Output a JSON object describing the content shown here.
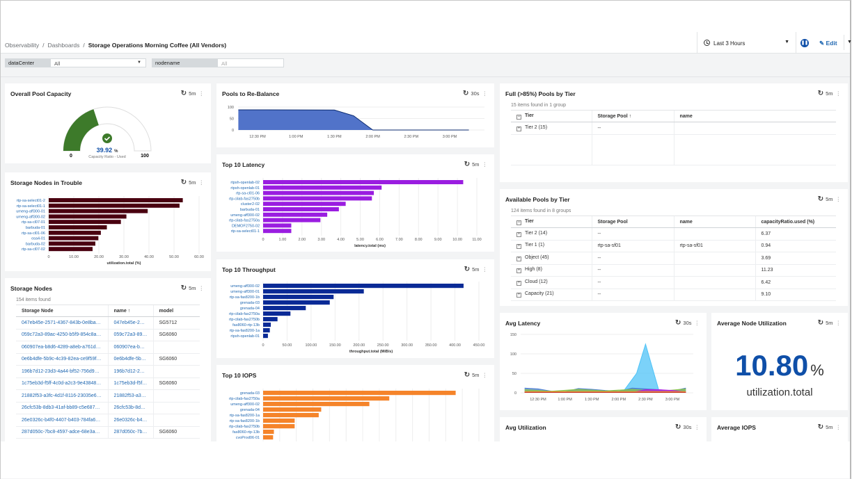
{
  "breadcrumb": {
    "items": [
      "Observability",
      "Dashboards"
    ],
    "current": "Storage Operations Morning Coffee (All Vendors)"
  },
  "header": {
    "time_range": "Last 3 Hours",
    "pause_icon": "pause-icon",
    "edit_label": "Edit"
  },
  "filters": [
    {
      "label": "dataCenter",
      "value": "All"
    },
    {
      "label": "nodename",
      "placeholder": "All"
    }
  ],
  "colors": {
    "accent": "#0f4fa8",
    "link": "#1f67b1",
    "gauge": "#3d7a2a",
    "trouble": "#4a0010",
    "latency": "#9a1de0",
    "throughput": "#0a2a96",
    "iops": "#f5842a",
    "rebalance": "#5173c9"
  },
  "panels": {
    "overall": {
      "title": "Overall Pool Capacity",
      "refresh": "5m",
      "value": "39.92",
      "unit": "%",
      "caption": "Capacity Ratio - Used",
      "min": "0",
      "max": "100",
      "fraction": 0.3992
    },
    "trouble": {
      "title": "Storage Nodes in Trouble",
      "refresh": "5m"
    },
    "nodes": {
      "title": "Storage Nodes",
      "refresh": "5m",
      "count": "154 items found",
      "columns": [
        "Storage Node",
        "name ↑",
        "model"
      ],
      "rows": [
        [
          "047eb45e-2571-4367-843b-0e8bad58f...",
          "047eb45e-2571-436",
          "SG5712"
        ],
        [
          "059c72a3-89ac-4250-b5f9-854c8a0faa85",
          "059c72a3-89ac-4250",
          "SG6060"
        ],
        [
          "060907ea-b8d6-4289-a8eb-a761dd4e2...",
          "060907ea-b8d6-428",
          ""
        ],
        [
          "0e6b4dfe-5b9c-4c39-82ea-ce9f59f10724",
          "0e6b4dfe-5b9c-4c3",
          "SG6060"
        ],
        [
          "196b7d12-23d3-4a44-bf52-756d9ad58...",
          "196b7d12-23d3-4a4",
          ""
        ],
        [
          "1c75eb3d-f5ff-4c0d-a2c3-9e43848c297f",
          "1c75eb3d-f5ff-4c0d",
          "SG6060"
        ],
        [
          "21882f53-a3fc-4d1f-8116-23035e6b74bc",
          "21882f53-a3fc-4d1f",
          ""
        ],
        [
          "26cfc53b-8db3-41af-bb89-c5e687b9e0...",
          "26cfc53b-8db3-41af",
          ""
        ],
        [
          "26e0326c-b4f0-4407-b403-784fa6a76cad",
          "26e0326c-b4f0-4407",
          ""
        ],
        [
          "287d050c-7bc8-4597-adce-68e3a1087...",
          "287d050c-7bc8-459",
          "SG6060"
        ]
      ]
    },
    "rebalance": {
      "title": "Pools to Re-Balance",
      "refresh": "30s"
    },
    "latency": {
      "title": "Top 10 Latency",
      "refresh": "5m"
    },
    "throughput": {
      "title": "Top 10 Throughput",
      "refresh": "5m"
    },
    "iops": {
      "title": "Top 10 IOPS",
      "refresh": "5m"
    },
    "full": {
      "title": "Full (>85%) Pools by Tier",
      "refresh": "5m",
      "count": "15 items found in 1 group",
      "columns": [
        "Tier",
        "Storage Pool ↑",
        "name"
      ],
      "rows": [
        [
          "Tier 2 (15)",
          "--",
          ""
        ]
      ]
    },
    "available": {
      "title": "Available Pools by Tier",
      "refresh": "5m",
      "count": "124 items found in 8 groups",
      "columns": [
        "Tier",
        "Storage Pool",
        "name",
        "capacityRatio.used (%)"
      ],
      "rows": [
        [
          "Tier 2 (14)",
          "--",
          "",
          "6.37"
        ],
        [
          "Tier 1 (1)",
          "rtp-sa-sf01",
          "rtp-sa-sf01",
          "0.94"
        ],
        [
          "Object (45)",
          "--",
          "",
          "3.69"
        ],
        [
          "High (8)",
          "--",
          "",
          "11.23"
        ],
        [
          "Cloud (12)",
          "--",
          "",
          "6.42"
        ],
        [
          "Capacity (21)",
          "--",
          "",
          "9.10"
        ]
      ]
    },
    "avglat": {
      "title": "Avg Latency",
      "refresh": "30s"
    },
    "nodeutil": {
      "title": "Average Node Utilization",
      "refresh": "5m",
      "value": "10.80",
      "unit": "%",
      "metric": "utilization.total"
    },
    "avgutil": {
      "title": "Avg Utilization",
      "refresh": "30s"
    },
    "avgiops": {
      "title": "Average IOPS",
      "refresh": "5m"
    }
  },
  "chart_data": [
    {
      "id": "trouble",
      "type": "bar",
      "orientation": "horizontal",
      "xlabel": "utilization.total (%)",
      "xlim": [
        0,
        60
      ],
      "ticks": [
        "0",
        "10.00",
        "20.00",
        "30.00",
        "40.00",
        "50.00",
        "60.00"
      ],
      "categories": [
        "rtp-sa-select01-2",
        "rtp-sa-select01-1",
        "umeng-aff300-01",
        "umeng-aff300-02",
        "rtp-sa-cl07-01",
        "barbuda-01",
        "rtp-sa-cl01-06",
        "osa4-01",
        "barbuda-02",
        "rtp-sa-cl07-02"
      ],
      "values": [
        53.5,
        52.2,
        39.5,
        31.0,
        28.8,
        23.2,
        20.8,
        19.8,
        18.6,
        17.5
      ]
    },
    {
      "id": "latency",
      "type": "bar",
      "orientation": "horizontal",
      "xlabel": "latency.total (ms)",
      "xlim": [
        0,
        11
      ],
      "ticks": [
        "0",
        "1.00",
        "2.00",
        "3.00",
        "4.00",
        "5.00",
        "6.00",
        "7.00",
        "8.00",
        "9.00",
        "10.00",
        "11.00"
      ],
      "categories": [
        "rtpsh-openlab-02",
        "rtpsh-openlab-01",
        "rtp-sa-cl01-06",
        "rtp-cilab-fas2750b",
        "cluster2-02",
        "barbuda-01",
        "umeng-aff300-02",
        "rtp-cilab-fas2750a",
        "DEMOF2750-02",
        "rtp-sa-select01-1"
      ],
      "values": [
        10.3,
        6.1,
        5.7,
        5.6,
        4.25,
        3.9,
        3.3,
        2.95,
        1.45,
        1.45
      ]
    },
    {
      "id": "throughput",
      "type": "bar",
      "orientation": "horizontal",
      "xlabel": "throughput.total (MiB/s)",
      "xlim": [
        0,
        450
      ],
      "ticks": [
        "0",
        "50.00",
        "100.00",
        "150.00",
        "200.00",
        "250.00",
        "300.00",
        "350.00",
        "400.00",
        "450.00"
      ],
      "categories": [
        "umeng-aff300-02",
        "umeng-aff300-01",
        "rtp-sa-fas8200-1b",
        "grenada-03",
        "grenada-04",
        "rtp-cilab-fas2750a",
        "rtp-cilab-fas2750b",
        "fas8060-rtp-13b",
        "rtp-sa-fas8200-1a",
        "rtpsh-openlab-01"
      ],
      "values": [
        418,
        210,
        147,
        139,
        89,
        57,
        30,
        16,
        14,
        10
      ]
    },
    {
      "id": "iops",
      "type": "bar",
      "orientation": "horizontal",
      "xlim": [
        0,
        13
      ],
      "categories": [
        "grenada-03",
        "rtp-cilab-fas2750a",
        "umeng-aff300-02",
        "grenada-04",
        "rtp-sa-fas8200-1a",
        "rtp-sa-fas8200-1b",
        "rtp-cilab-fas2750b",
        "fas8060-rtp-13b",
        "cvoProd06-01"
      ],
      "values": [
        11.6,
        7.6,
        6.4,
        3.5,
        3.35,
        1.9,
        1.9,
        0.65,
        0.6
      ]
    },
    {
      "id": "rebalance",
      "type": "area",
      "ylim": [
        0,
        100
      ],
      "yticks": [
        "0",
        "50",
        "100"
      ],
      "xticks": [
        "12:30 PM",
        "1:00 PM",
        "1:30 PM",
        "2:00 PM",
        "2:30 PM",
        "3:00 PM"
      ],
      "series": [
        {
          "x": [
            "12:15 PM",
            "1:30 PM",
            "1:45 PM",
            "2:00 PM",
            "3:15 PM"
          ],
          "y": [
            88,
            87,
            62,
            0,
            0
          ]
        }
      ]
    },
    {
      "id": "avglat",
      "type": "area",
      "ylim": [
        0,
        150
      ],
      "yticks": [
        "0",
        "50",
        "100",
        "150"
      ],
      "xticks": [
        "12:30 PM",
        "1:00 PM",
        "1:30 PM",
        "2:00 PM",
        "2:30 PM",
        "3:00 PM"
      ],
      "series": [
        {
          "color": "#4fc3f7",
          "x": [
            "12:15 PM",
            "2:05 PM",
            "2:20 PM",
            "2:30 PM",
            "2:45 PM",
            "3:15 PM"
          ],
          "y": [
            2,
            3,
            50,
            125,
            5,
            3
          ]
        },
        {
          "color": "#4a7ccf",
          "x": [
            "12:15 PM",
            "12:30 PM",
            "12:45 PM",
            "1:00 PM",
            "1:15 PM",
            "1:30 PM",
            "1:45 PM",
            "2:00 PM",
            "2:15 PM",
            "2:30 PM",
            "2:45 PM",
            "3:00 PM",
            "3:15 PM"
          ],
          "y": [
            12,
            10,
            4,
            3,
            11,
            9,
            6,
            4,
            12,
            10,
            8,
            5,
            12
          ]
        },
        {
          "color": "#8bc34a",
          "x": [
            "12:15 PM",
            "12:45 PM",
            "1:15 PM",
            "1:45 PM",
            "2:15 PM",
            "2:45 PM",
            "3:15 PM"
          ],
          "y": [
            8,
            4,
            9,
            5,
            9,
            4,
            10
          ]
        },
        {
          "color": "#b620e0",
          "x": [
            "12:15 PM",
            "2:15 PM",
            "2:30 PM",
            "2:45 PM",
            "3:00 PM",
            "3:15 PM"
          ],
          "y": [
            1,
            1,
            8,
            8,
            6,
            2
          ]
        },
        {
          "color": "#f5842a",
          "x": [
            "12:15 PM",
            "3:15 PM"
          ],
          "y": [
            3,
            3
          ]
        },
        {
          "color": "#c0392b",
          "x": [
            "12:15 PM",
            "3:15 PM"
          ],
          "y": [
            1,
            1
          ]
        }
      ]
    }
  ]
}
